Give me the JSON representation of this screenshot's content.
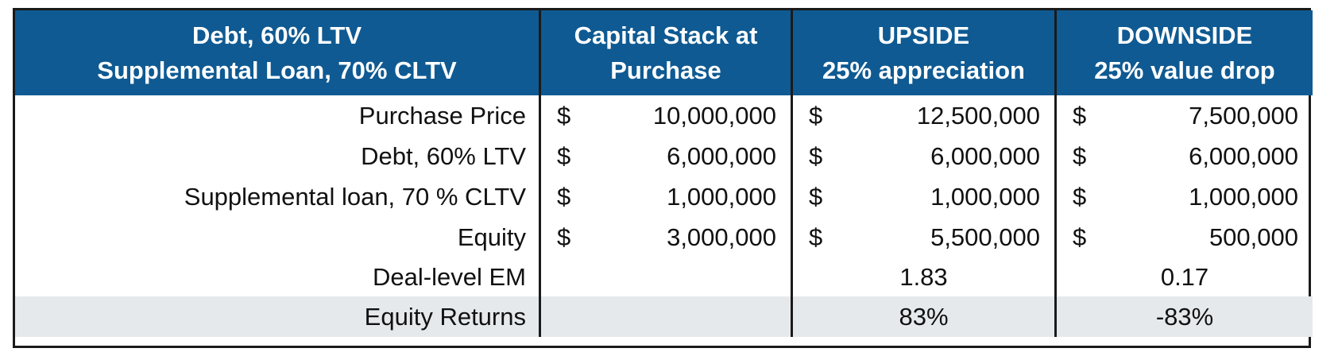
{
  "header": {
    "col1_line1": "Debt, 60% LTV",
    "col1_line2": "Supplemental Loan, 70% CLTV",
    "col2_line1": "Capital Stack at",
    "col2_line2": "Purchase",
    "col3_line1": "UPSIDE",
    "col3_line2": "25% appreciation",
    "col4_line1": "DOWNSIDE",
    "col4_line2": "25% value drop"
  },
  "currency_symbol": "$",
  "rows": [
    {
      "label": "Purchase Price",
      "purchase": "10,000,000",
      "upside": "12,500,000",
      "downside": "7,500,000"
    },
    {
      "label": "Debt, 60% LTV",
      "purchase": "6,000,000",
      "upside": "6,000,000",
      "downside": "6,000,000"
    },
    {
      "label": "Supplemental loan, 70 % CLTV",
      "purchase": "1,000,000",
      "upside": "1,000,000",
      "downside": "1,000,000"
    },
    {
      "label": "Equity",
      "purchase": "3,000,000",
      "upside": "5,500,000",
      "downside": "500,000"
    }
  ],
  "em_row": {
    "label": "Deal-level EM",
    "upside": "1.83",
    "downside": "0.17"
  },
  "returns_row": {
    "label": "Equity Returns",
    "upside": "83%",
    "downside": "-83%"
  },
  "colors": {
    "header_bg": "#0f5a92",
    "header_text": "#ffffff",
    "shaded_row": "#e6e9ec",
    "border": "#1a1a1a"
  }
}
